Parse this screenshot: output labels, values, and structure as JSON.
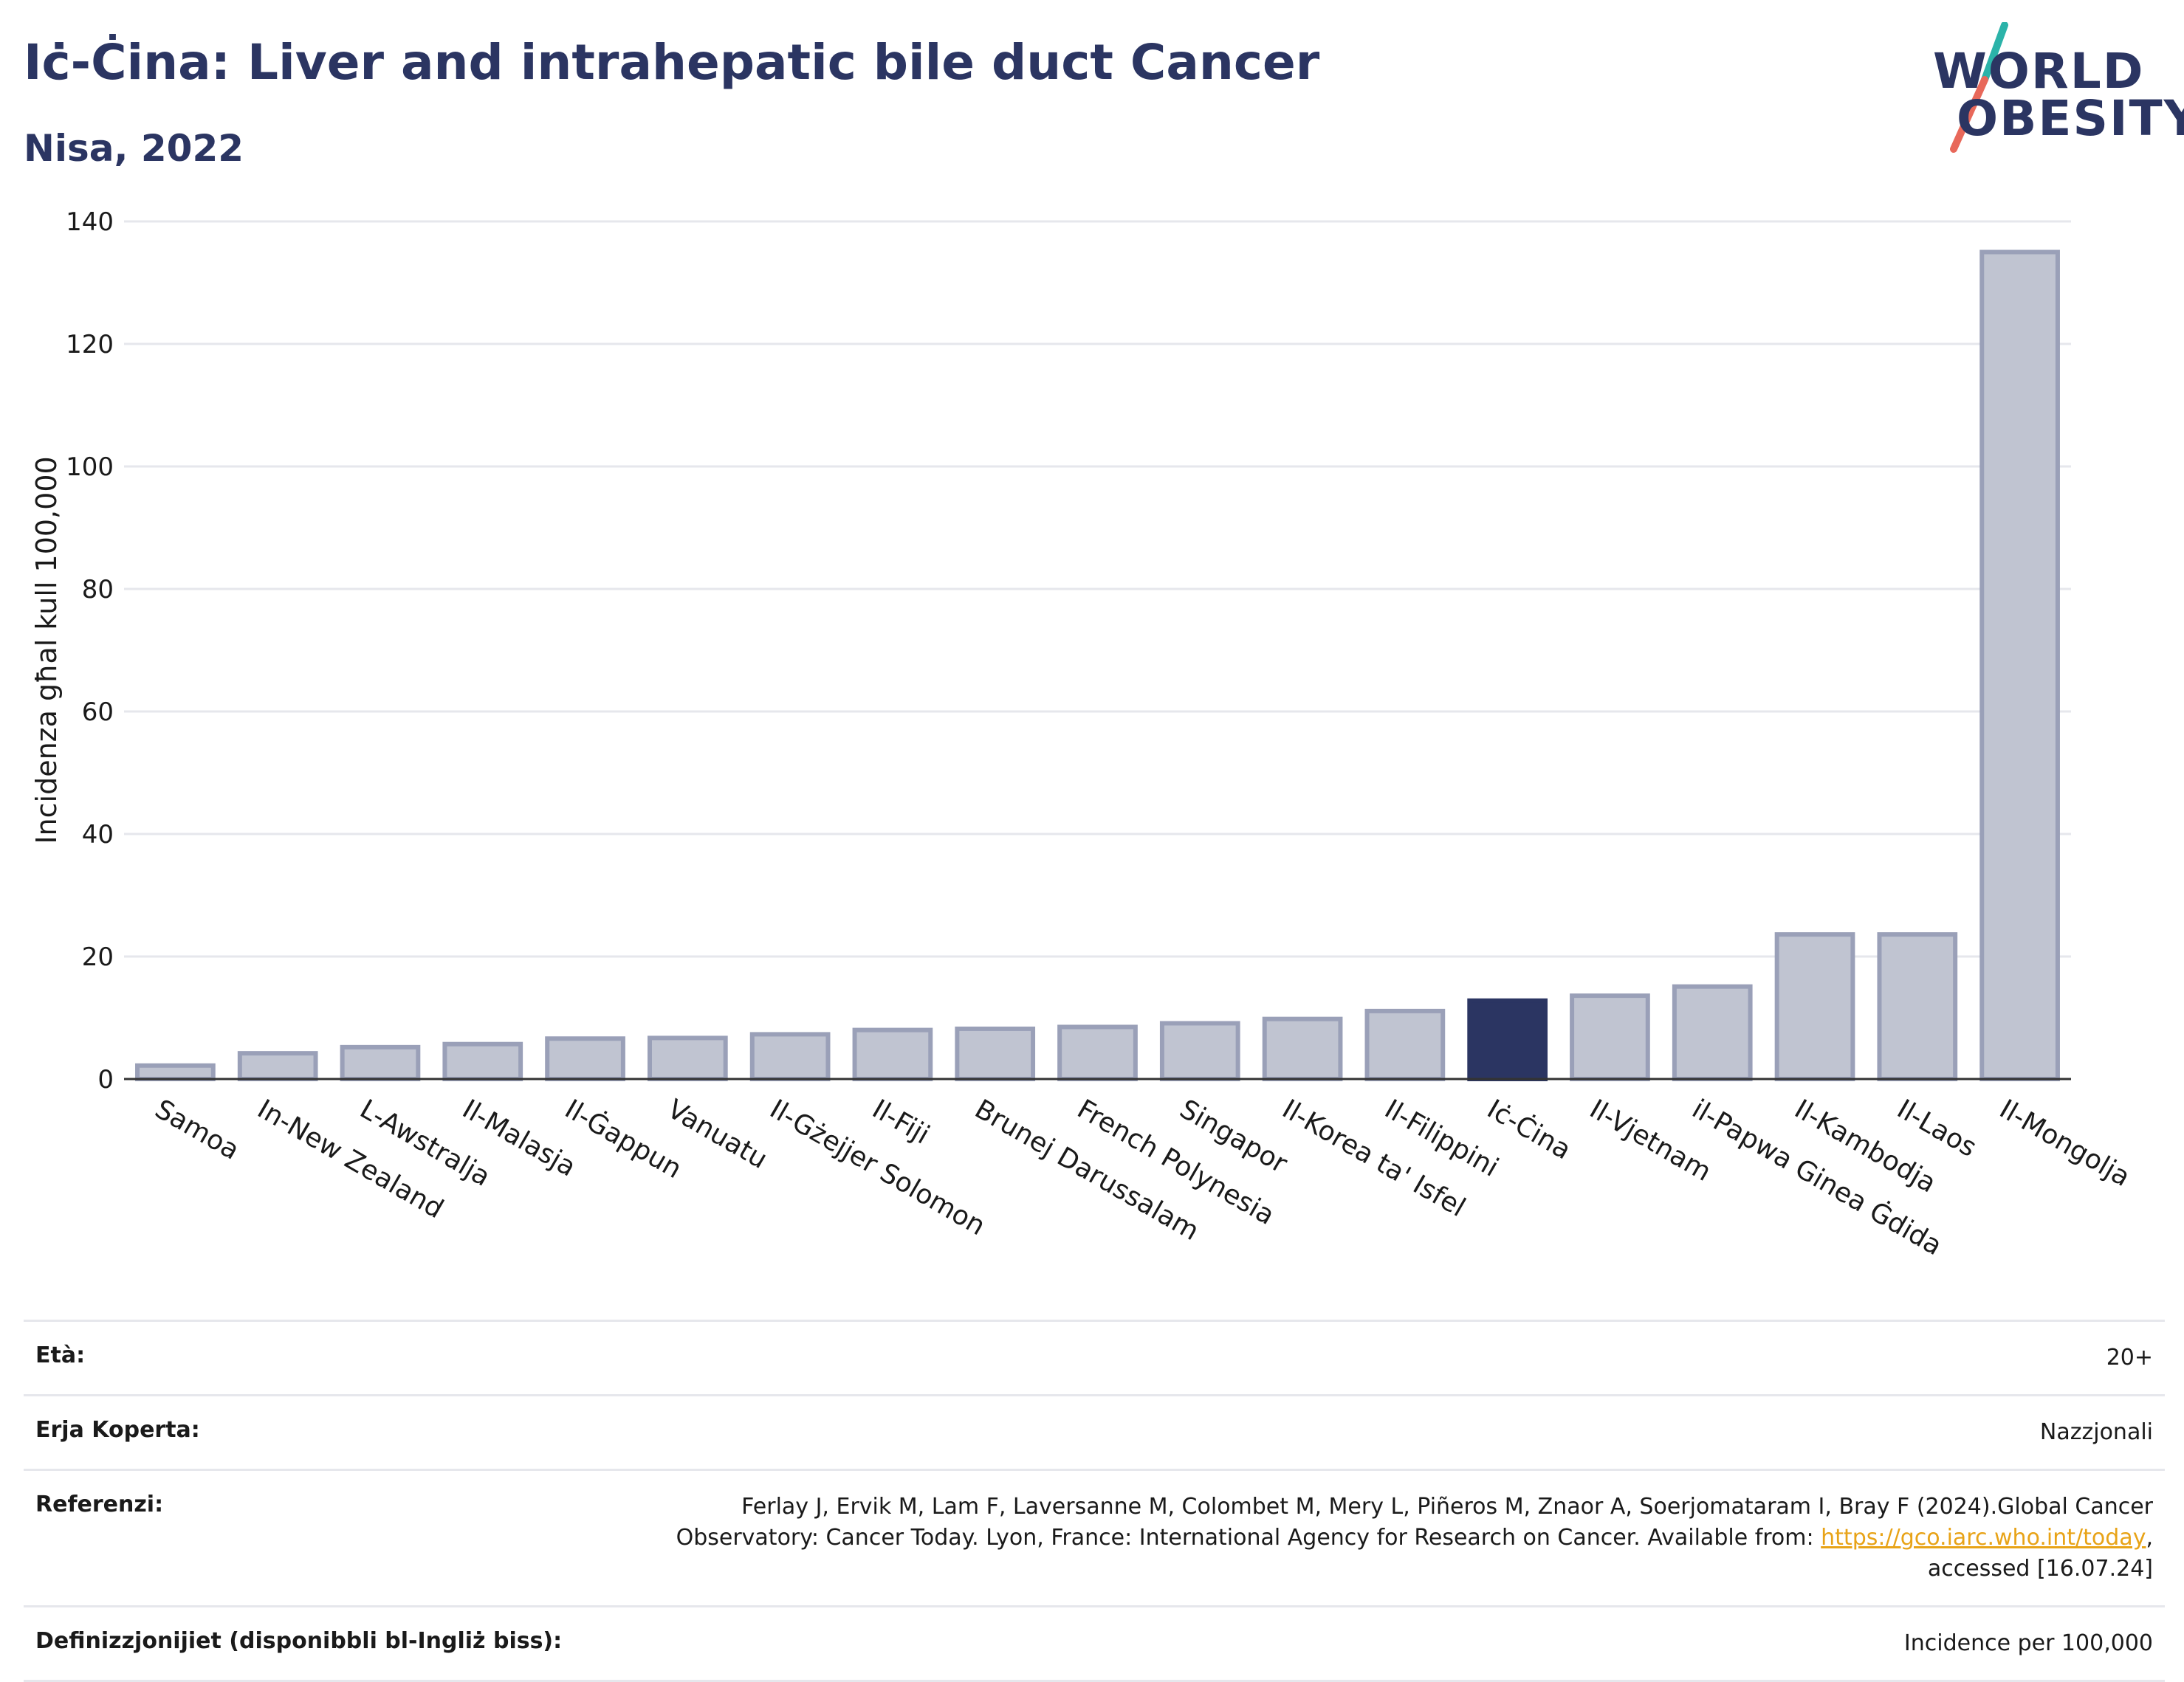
{
  "header": {
    "title": "Iċ-Ċina: Liver and intrahepatic bile duct Cancer",
    "subtitle": "Nisa, 2022"
  },
  "logo": {
    "line1": "WORLD",
    "line2": "OBESITY",
    "colors": {
      "text": "#2b3562",
      "slash_top": "#2bb3a9",
      "slash_bottom": "#e8685a"
    }
  },
  "chart_data": {
    "type": "bar",
    "title": "",
    "xlabel": "",
    "ylabel": "Incidenza għal kull 100,000",
    "ylim": [
      0,
      140
    ],
    "yticks": [
      0,
      20,
      40,
      60,
      80,
      100,
      120,
      140
    ],
    "grid": true,
    "highlight": "Iċ-Ċina",
    "colors": {
      "bar": "#c0c4d1",
      "bar_edge": "#9aa0b8",
      "highlight": "#2b3562"
    },
    "categories": [
      "Samoa",
      "In-New Zealand",
      "L-Awstralja",
      "Il-Malasja",
      "Il-Ġappun",
      "Vanuatu",
      "Il-Gżejjer Solomon",
      "Il-Fiji",
      "Brunej Darussalam",
      "French Polynesia",
      "Singapor",
      "Il-Korea ta' Isfel",
      "Il-Filippini",
      "Iċ-Ċina",
      "Il-Vjetnam",
      "il-Papwa Ginea Ġdida",
      "Il-Kambodja",
      "Il-Laos",
      "Il-Mongolja"
    ],
    "values": [
      2.2,
      4.2,
      5.2,
      5.7,
      6.6,
      6.7,
      7.3,
      8.0,
      8.2,
      8.5,
      9.1,
      9.8,
      11.1,
      12.8,
      13.6,
      15.1,
      23.6,
      23.6,
      135.0
    ]
  },
  "metadata": [
    {
      "key": "Età:",
      "value": "20+"
    },
    {
      "key": "Erja Koperta:",
      "value": "Nazzjonali"
    },
    {
      "key": "Referenzi:",
      "value_before": "Ferlay J, Ervik M, Lam F, Laversanne M, Colombet M, Mery L, Piñeros M, Znaor A, Soerjomataram I, Bray F (2024).Global Cancer Observatory: Cancer Today. Lyon, France: International Agency for Research on Cancer. Available from:",
      "link": "https://gco.iarc.who.int/today",
      "value_after": ", accessed [16.07.24]"
    },
    {
      "key": "Definizzjonijiet (disponibbli bl-Ingliż biss):",
      "value": "Incidence per 100,000"
    }
  ]
}
